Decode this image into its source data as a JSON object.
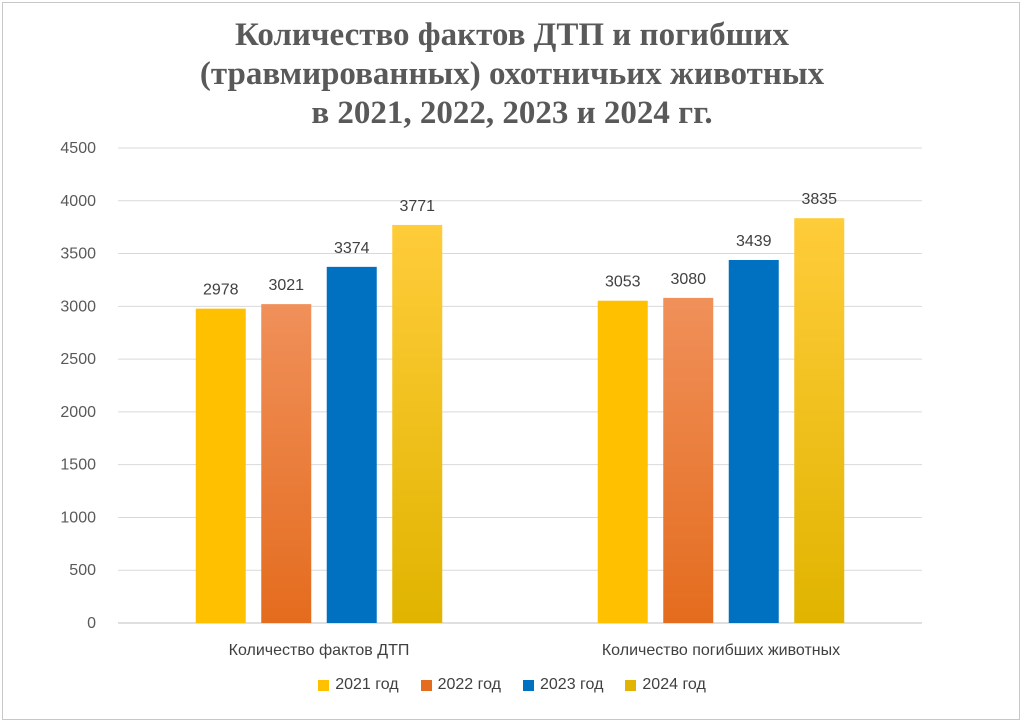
{
  "chart_data": {
    "type": "bar",
    "title_lines": [
      "Количество фактов ДТП и погибших",
      "(травмированных) охотничьих животных",
      "в 2021, 2022, 2023 и 2024 гг."
    ],
    "categories": [
      "Количество фактов ДТП",
      "Количество погибших животных"
    ],
    "series": [
      {
        "name": "2021 год",
        "values": [
          2978,
          3053
        ],
        "color": "#FFC000",
        "color2": "#FFC000"
      },
      {
        "name": "2022 год",
        "values": [
          3021,
          3080
        ],
        "color": "#F0905A",
        "color2": "#E46C1E"
      },
      {
        "name": "2023 год",
        "values": [
          3374,
          3439
        ],
        "color": "#0070C0",
        "color2": "#0070C0"
      },
      {
        "name": "2024 год",
        "values": [
          3771,
          3835
        ],
        "color": "#FFCC3A",
        "color2": "#E0B400"
      }
    ],
    "yticks": [
      "0",
      "500",
      "1000",
      "1500",
      "2000",
      "2500",
      "3000",
      "3500",
      "4000",
      "4500"
    ],
    "ylim": [
      0,
      4500
    ],
    "xlabel": "",
    "ylabel": "",
    "grid": true,
    "legend_position": "bottom"
  }
}
